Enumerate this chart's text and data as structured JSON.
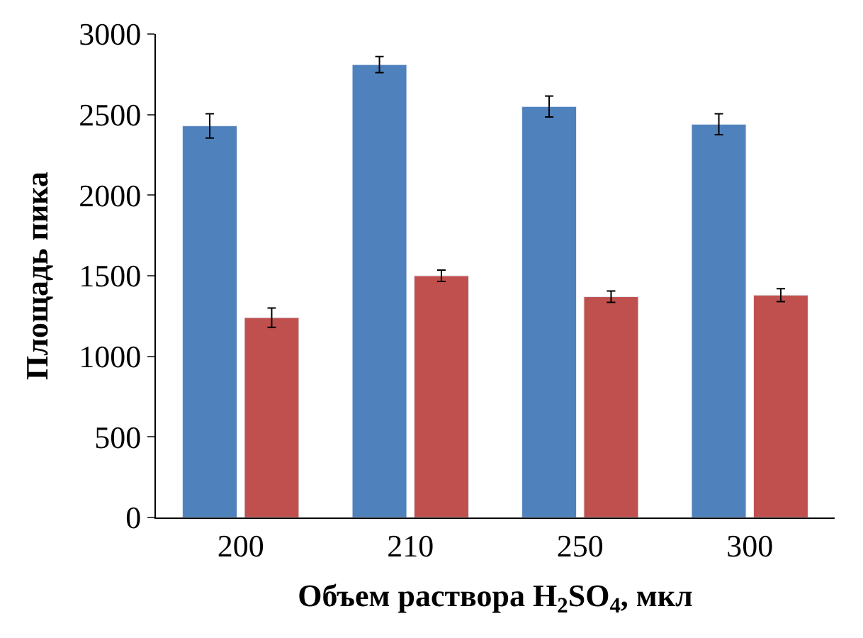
{
  "chart_data": {
    "type": "bar",
    "xlabel": "Объем раствора H$_{2}$SO$_{4}$, мкл",
    "ylabel": "Площадь пика",
    "categories": [
      "200",
      "210",
      "250",
      "300"
    ],
    "series": [
      {
        "color": "#4f81bd",
        "values": [
          2430,
          2810,
          2550,
          2440
        ],
        "errors": [
          75,
          50,
          65,
          65
        ]
      },
      {
        "color": "#c0504d",
        "values": [
          1240,
          1500,
          1370,
          1380
        ],
        "errors": [
          60,
          35,
          35,
          40
        ]
      }
    ],
    "ylim": [
      0,
      3000
    ],
    "yticks": [
      0,
      500,
      1000,
      1500,
      2000,
      2500,
      3000
    ]
  }
}
